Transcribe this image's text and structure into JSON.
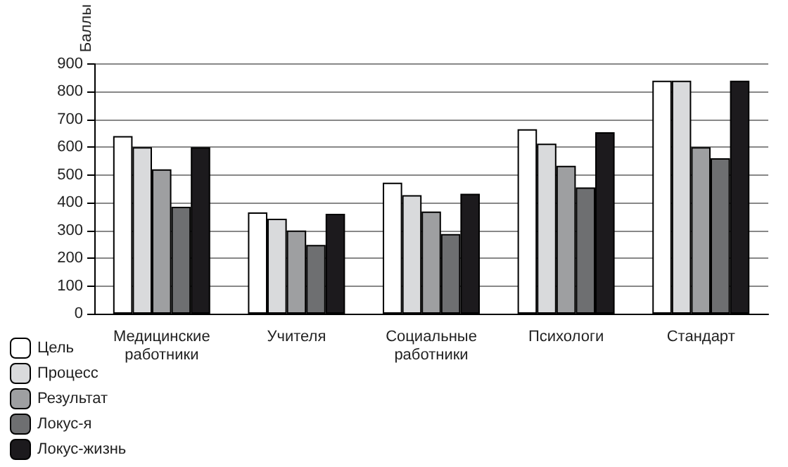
{
  "chart_data": {
    "type": "bar",
    "ylabel": "Баллы",
    "categories": [
      "Медицинские\nработники",
      "Учителя",
      "Социальные\nработники",
      "Психологи",
      "Стандарт"
    ],
    "series": [
      {
        "name": "Цель",
        "color": "#ffffff",
        "values": [
          640,
          365,
          472,
          665,
          840
        ]
      },
      {
        "name": "Процесс",
        "color": "#d9dadc",
        "values": [
          600,
          342,
          427,
          613,
          840
        ]
      },
      {
        "name": "Результат",
        "color": "#9e9fa1",
        "values": [
          520,
          300,
          368,
          533,
          600
        ]
      },
      {
        "name": "Локус-я",
        "color": "#6e6f71",
        "values": [
          385,
          248,
          287,
          455,
          560
        ]
      },
      {
        "name": "Локус-жизнь",
        "color": "#1c1a1d",
        "values": [
          600,
          360,
          432,
          654,
          840
        ]
      }
    ],
    "ylim": [
      0,
      900
    ],
    "yticks": [
      0,
      100,
      200,
      300,
      400,
      500,
      600,
      700,
      800,
      900
    ],
    "grid": "y",
    "legend": "bottom left"
  }
}
